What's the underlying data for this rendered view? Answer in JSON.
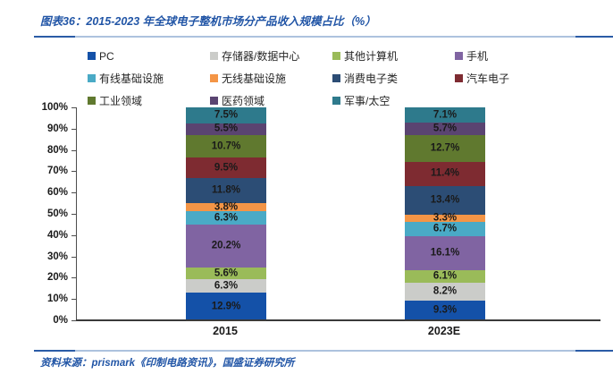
{
  "page": {
    "title": "图表36：2015-2023 年全球电子整机市场分产品收入规模占比（%）",
    "source": "资料来源：prismark《印制电路资讯》，国盛证券研究所"
  },
  "colors": {
    "title_blue": "#2155A6",
    "rule_dark": "#2B5CA6",
    "rule_light": "#ADC2DE",
    "axis_line": "#4D4D4D",
    "text_dark": "#1A1A1A"
  },
  "chart_data": {
    "type": "bar",
    "stacked": true,
    "title": "2015-2023 年全球电子整机市场分产品收入规模占比（%）",
    "categories": [
      "2015",
      "2023E"
    ],
    "series": [
      {
        "name": "PC",
        "color": "#1451A8",
        "values": [
          12.9,
          9.3
        ]
      },
      {
        "name": "存储器/数据中心",
        "color": "#CBCCC9",
        "values": [
          6.3,
          8.2
        ]
      },
      {
        "name": "其他计算机",
        "color": "#9ABB59",
        "values": [
          5.6,
          6.1
        ]
      },
      {
        "name": "手机",
        "color": "#8064A2",
        "values": [
          20.2,
          16.1
        ]
      },
      {
        "name": "有线基础设施",
        "color": "#4AAAC6",
        "values": [
          6.3,
          6.7
        ]
      },
      {
        "name": "无线基础设施",
        "color": "#F49546",
        "values": [
          3.8,
          3.3
        ]
      },
      {
        "name": "消费电子类",
        "color": "#2C4D75",
        "values": [
          11.8,
          13.4
        ]
      },
      {
        "name": "汽车电子",
        "color": "#7E2B31",
        "values": [
          9.5,
          11.4
        ]
      },
      {
        "name": "工业领域",
        "color": "#60792F",
        "values": [
          10.7,
          12.7
        ]
      },
      {
        "name": "医药领域",
        "color": "#5A4471",
        "values": [
          5.5,
          5.7
        ]
      },
      {
        "name": "军事/太空",
        "color": "#2E7A8C",
        "values": [
          7.5,
          7.1
        ]
      }
    ],
    "yticks": [
      "100%",
      "90%",
      "80%",
      "70%",
      "60%",
      "50%",
      "40%",
      "30%",
      "20%",
      "10%",
      "0%"
    ],
    "ylim": [
      0,
      100
    ],
    "grid": false,
    "legend_position": "top",
    "value_label_format": "0.0%"
  }
}
